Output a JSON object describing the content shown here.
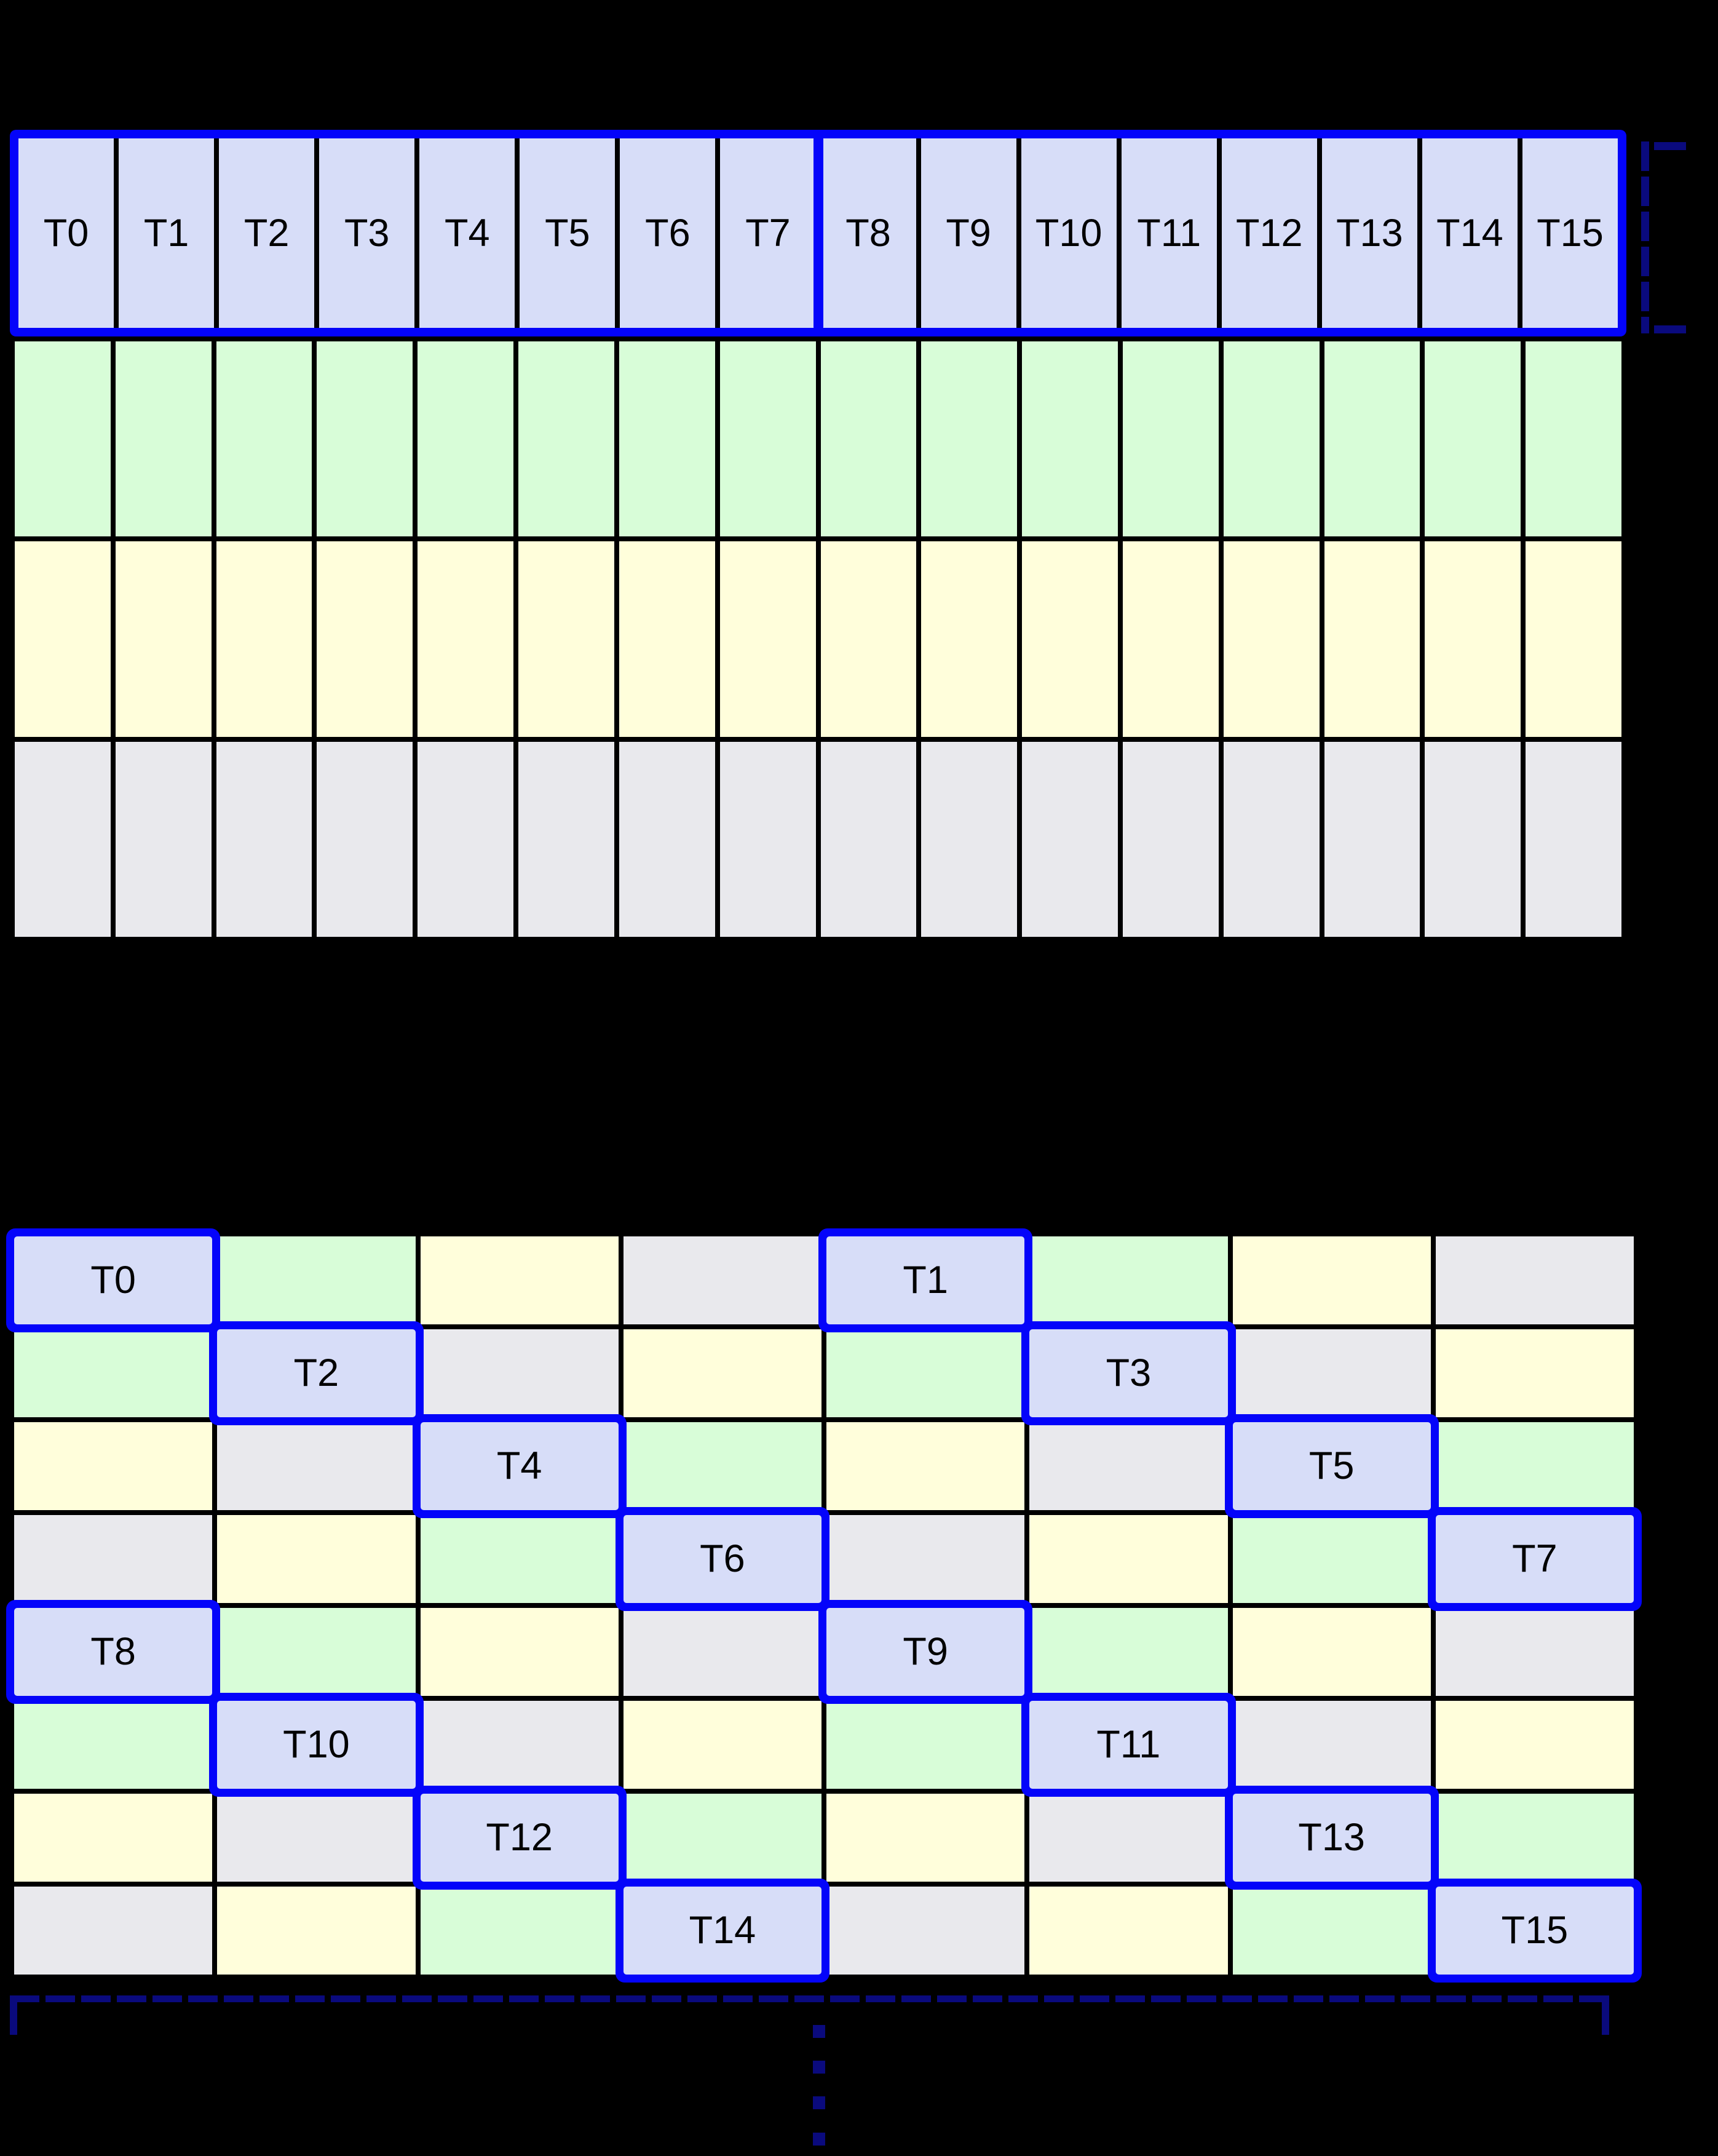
{
  "palette": {
    "lavender": "#d7ddf8",
    "green": "#d8fdd8",
    "yellow": "#fffedb",
    "gray": "#e9e9ed",
    "blue": "#0404fa",
    "navy": "#0a0a7d",
    "grid_line": "#000000",
    "background": "#000000",
    "label_color": "#000000"
  },
  "top_grid": {
    "columns": 16,
    "thread_row": {
      "fill": "lavender",
      "labels": [
        "T0",
        "T1",
        "T2",
        "T3",
        "T4",
        "T5",
        "T6",
        "T7",
        "T8",
        "T9",
        "T10",
        "T11",
        "T12",
        "T13",
        "T14",
        "T15"
      ],
      "divider_after": "T7"
    },
    "body_rows": [
      {
        "fill": "green"
      },
      {
        "fill": "yellow"
      },
      {
        "fill": "gray"
      }
    ]
  },
  "bottom_grid": {
    "rows": 8,
    "columns": 8,
    "cell_colors": [
      [
        "lavender",
        "green",
        "yellow",
        "gray",
        "lavender",
        "green",
        "yellow",
        "gray"
      ],
      [
        "green",
        "lavender",
        "gray",
        "yellow",
        "green",
        "lavender",
        "gray",
        "yellow"
      ],
      [
        "yellow",
        "gray",
        "lavender",
        "green",
        "yellow",
        "gray",
        "lavender",
        "green"
      ],
      [
        "gray",
        "yellow",
        "green",
        "lavender",
        "gray",
        "yellow",
        "green",
        "lavender"
      ],
      [
        "lavender",
        "green",
        "yellow",
        "gray",
        "lavender",
        "green",
        "yellow",
        "gray"
      ],
      [
        "green",
        "lavender",
        "gray",
        "yellow",
        "green",
        "lavender",
        "gray",
        "yellow"
      ],
      [
        "yellow",
        "gray",
        "lavender",
        "green",
        "yellow",
        "gray",
        "lavender",
        "green"
      ],
      [
        "gray",
        "yellow",
        "green",
        "lavender",
        "gray",
        "yellow",
        "green",
        "lavender"
      ]
    ],
    "threads": [
      {
        "label": "T0",
        "row": 0,
        "col": 0
      },
      {
        "label": "T1",
        "row": 0,
        "col": 4
      },
      {
        "label": "T2",
        "row": 1,
        "col": 1
      },
      {
        "label": "T3",
        "row": 1,
        "col": 5
      },
      {
        "label": "T4",
        "row": 2,
        "col": 2
      },
      {
        "label": "T5",
        "row": 2,
        "col": 6
      },
      {
        "label": "T6",
        "row": 3,
        "col": 3
      },
      {
        "label": "T7",
        "row": 3,
        "col": 7
      },
      {
        "label": "T8",
        "row": 4,
        "col": 0
      },
      {
        "label": "T9",
        "row": 4,
        "col": 4
      },
      {
        "label": "T10",
        "row": 5,
        "col": 1
      },
      {
        "label": "T11",
        "row": 5,
        "col": 5
      },
      {
        "label": "T12",
        "row": 6,
        "col": 2
      },
      {
        "label": "T13",
        "row": 6,
        "col": 6
      },
      {
        "label": "T14",
        "row": 7,
        "col": 3
      },
      {
        "label": "T15",
        "row": 7,
        "col": 7
      }
    ]
  },
  "right_bracket": {
    "style": "dashed",
    "color": "#0a0a7d",
    "marks": "thread-row-height"
  },
  "bottom_bracket": {
    "style": "dashed",
    "color": "#0a0a7d",
    "marks": "grid-width"
  },
  "ellipsis": {
    "orientation": "vertical",
    "dash_count": 4
  }
}
